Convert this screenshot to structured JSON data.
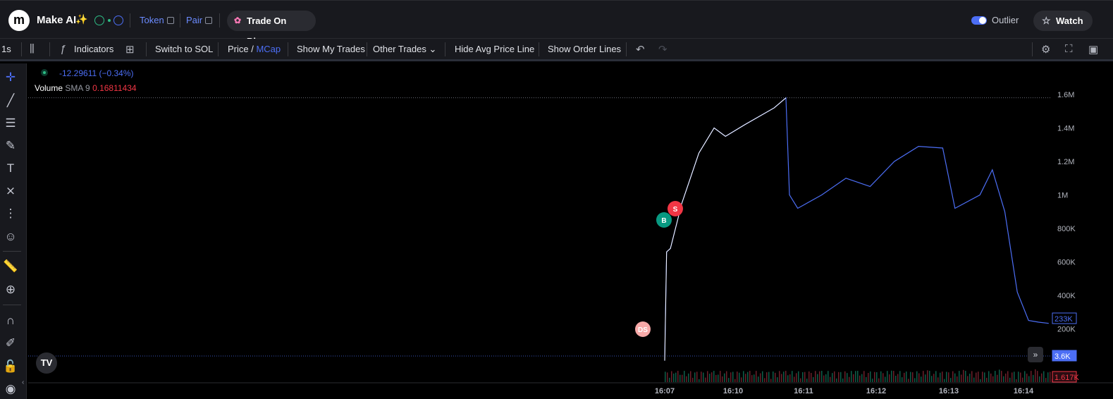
{
  "header": {
    "logo_letter": "m",
    "token_name": "Make AI",
    "sparkle": "✨",
    "token_link": "Token",
    "pair_link": "Pair",
    "trade_button": "Trade On Bloom",
    "outlier_label": "Outlier",
    "outlier_enabled": true,
    "watch_button": "Watch",
    "accent_color": "#4c6ef5"
  },
  "toolbar": {
    "interval": "1s",
    "indicators": "Indicators",
    "switch_sol": "Switch to SOL",
    "price": "Price",
    "slash": " / ",
    "mcap": "MCap",
    "show_my_trades": "Show My Trades",
    "other_trades": "Other Trades",
    "hide_avg": "Hide Avg Price Line",
    "show_order_lines": "Show Order Lines"
  },
  "legend": {
    "change": "-12.29611 (−0.34%)",
    "volume_label": "Volume",
    "sma_label": "SMA 9",
    "sma_value": "0.16811434"
  },
  "chart_data": {
    "type": "line",
    "series": [
      {
        "x": [
          "16:07:00",
          "16:07:05",
          "16:07:15",
          "16:07:45",
          "16:08:30",
          "16:09:10",
          "16:09:40",
          "16:10:10",
          "16:10:35",
          "16:10:45",
          "16:10:48",
          "16:10:55",
          "16:11:15",
          "16:11:35",
          "16:11:55",
          "16:12:15",
          "16:12:35",
          "16:12:55",
          "16:13:05",
          "16:13:25",
          "16:13:35",
          "16:13:45",
          "16:13:55",
          "16:14:05",
          "16:14:15",
          "16:14:25"
        ],
        "values": [
          10000,
          660000,
          680000,
          950000,
          1250000,
          1400000,
          1350000,
          1420000,
          1520000,
          1580000,
          1000000,
          920000,
          1000000,
          1100000,
          1050000,
          1200000,
          1290000,
          1280000,
          920000,
          1000000,
          1150000,
          900000,
          420000,
          250000,
          240000,
          233000
        ]
      }
    ],
    "last_value_label": "233K",
    "crosshair_value_label": "3.6K",
    "volume_value_label": "1.617K",
    "y_ticks": [
      "1.6M",
      "1.4M",
      "1.2M",
      "1M",
      "800K",
      "600K",
      "400K",
      "200K"
    ],
    "x_ticks": [
      "16:07",
      "16:10",
      "16:11",
      "16:12",
      "16:13",
      "16:14"
    ],
    "markers": [
      {
        "label": "S",
        "color": "#f23645",
        "time": "16:07:08"
      },
      {
        "label": "B",
        "color": "#089981",
        "time": "16:07:00"
      },
      {
        "label": "DS",
        "color": "#f7a9a8",
        "time": "16:06:40"
      }
    ],
    "up_color": "#ffffff",
    "down_color": "#4c6ef5"
  }
}
